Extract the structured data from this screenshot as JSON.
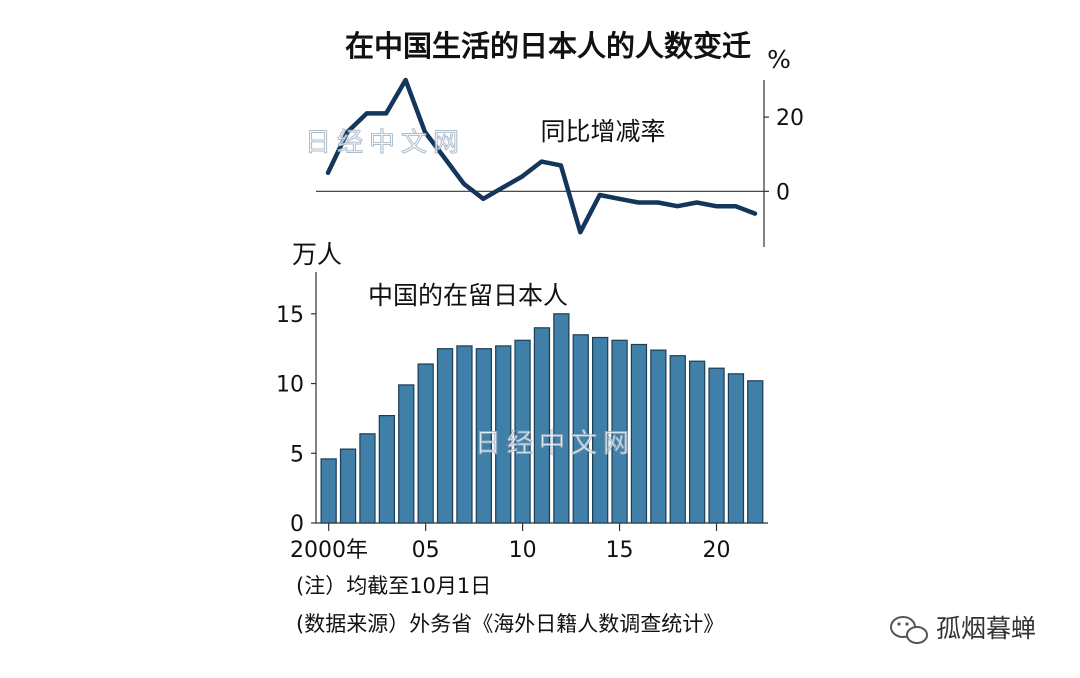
{
  "title": "在中国生活的日本人的人数变迁",
  "watermark": "日经中文网",
  "footnote_1": "(注）均截至10月1日",
  "footnote_2": "(数据来源）外务省《海外日籍人数调查统计》",
  "brand": "孤烟暮蝉",
  "colors": {
    "bar": "#3f7fa8",
    "bar_edge": "#1c3e55",
    "line": "#13365a",
    "axis": "#333333"
  },
  "chart_data": [
    {
      "type": "line",
      "title": "同比增减率",
      "unit": "%",
      "x": [
        2000,
        2001,
        2002,
        2003,
        2004,
        2005,
        2006,
        2007,
        2008,
        2009,
        2010,
        2011,
        2012,
        2013,
        2014,
        2015,
        2016,
        2017,
        2018,
        2019,
        2020,
        2021,
        2022
      ],
      "values": [
        5,
        16,
        21,
        21,
        30,
        16,
        9,
        2,
        -2,
        1,
        4,
        8,
        7,
        -11,
        -1,
        -2,
        -3,
        -3,
        -4,
        -3,
        -4,
        -4,
        -6
      ],
      "ylim": [
        -15,
        30
      ],
      "yticks": [
        0,
        20
      ],
      "ytick_labels": [
        "0",
        "20"
      ],
      "axis_position": "right"
    },
    {
      "type": "bar",
      "title": "中国的在留日本人",
      "unit": "万人",
      "x": [
        2000,
        2001,
        2002,
        2003,
        2004,
        2005,
        2006,
        2007,
        2008,
        2009,
        2010,
        2011,
        2012,
        2013,
        2014,
        2015,
        2016,
        2017,
        2018,
        2019,
        2020,
        2021,
        2022
      ],
      "values": [
        4.6,
        5.3,
        6.4,
        7.7,
        9.9,
        11.4,
        12.5,
        12.7,
        12.5,
        12.7,
        13.1,
        14.0,
        15.0,
        13.5,
        13.3,
        13.1,
        12.8,
        12.4,
        12.0,
        11.6,
        11.1,
        10.7,
        10.2
      ],
      "ylim": [
        0,
        18
      ],
      "yticks": [
        0,
        5,
        10,
        15
      ],
      "ytick_labels": [
        "0",
        "5",
        "10",
        "15"
      ],
      "xticks": [
        2000,
        2005,
        2010,
        2015,
        2020
      ],
      "xtick_labels": [
        "2000年",
        "05",
        "10",
        "15",
        "20"
      ]
    }
  ]
}
